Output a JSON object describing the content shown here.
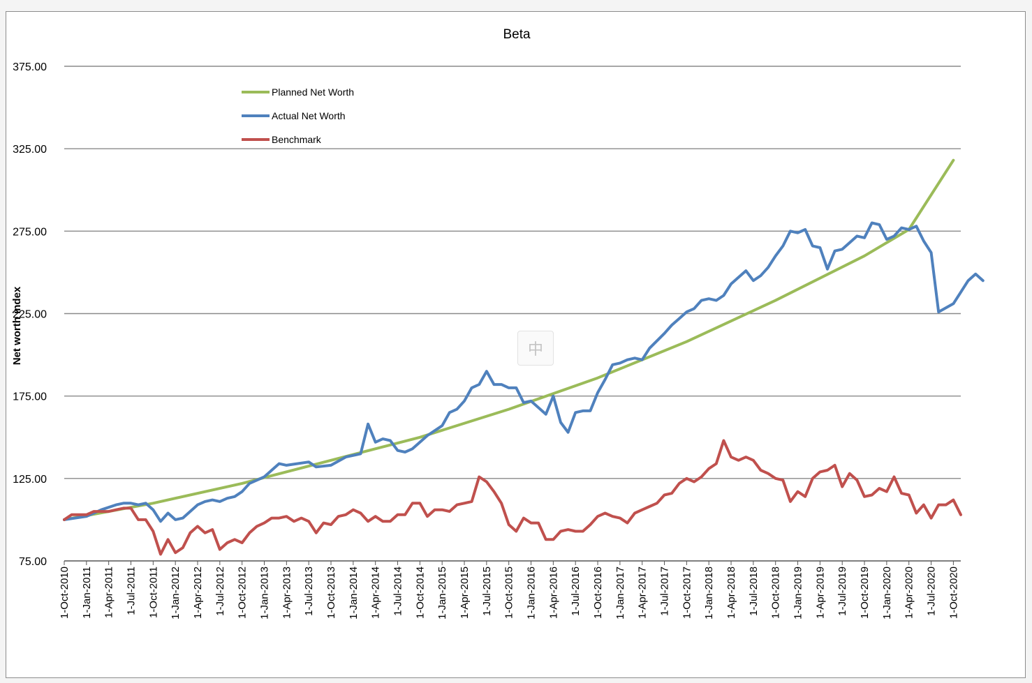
{
  "chart_data": {
    "type": "line",
    "title": "Beta",
    "ylabel": "Net worth index",
    "xlabel": "",
    "ylim": [
      75,
      375
    ],
    "yticks": [
      "75.00",
      "125.00",
      "175.00",
      "225.00",
      "275.00",
      "325.00",
      "375.00"
    ],
    "x_start": "2010-10-01",
    "months": 121,
    "x_tick_labels": [
      "1-Oct-2010",
      "1-Jan-2011",
      "1-Apr-2011",
      "1-Jul-2011",
      "1-Oct-2011",
      "1-Jan-2012",
      "1-Apr-2012",
      "1-Jul-2012",
      "1-Oct-2012",
      "1-Jan-2013",
      "1-Apr-2013",
      "1-Jul-2013",
      "1-Oct-2013",
      "1-Jan-2014",
      "1-Apr-2014",
      "1-Jul-2014",
      "1-Oct-2014",
      "1-Jan-2015",
      "1-Apr-2015",
      "1-Jul-2015",
      "1-Oct-2015",
      "1-Jan-2016",
      "1-Apr-2016",
      "1-Jul-2016",
      "1-Oct-2016",
      "1-Jan-2017",
      "1-Apr-2017",
      "1-Jul-2017",
      "1-Oct-2017",
      "1-Jan-2018",
      "1-Apr-2018",
      "1-Jul-2018",
      "1-Oct-2018",
      "1-Jan-2019",
      "1-Apr-2019",
      "1-Jul-2019",
      "1-Oct-2019",
      "1-Jan-2020",
      "1-Apr-2020",
      "1-Jul-2020",
      "1-Oct-2020"
    ],
    "grid": true,
    "legend_position": "top-left",
    "series": [
      {
        "name": "Planned Net Worth",
        "color": "#9bbb59",
        "anchors": [
          [
            0,
            100
          ],
          [
            12,
            110
          ],
          [
            24,
            122
          ],
          [
            36,
            136
          ],
          [
            48,
            150
          ],
          [
            60,
            167
          ],
          [
            72,
            186
          ],
          [
            84,
            208
          ],
          [
            96,
            233
          ],
          [
            108,
            260
          ],
          [
            114,
            276
          ],
          [
            120,
            318
          ]
        ]
      },
      {
        "name": "Actual Net Worth",
        "color": "#4f81bd",
        "anchors": [
          [
            0,
            100
          ],
          [
            3,
            102
          ],
          [
            5,
            106
          ],
          [
            7,
            109
          ],
          [
            8,
            110
          ],
          [
            9,
            110
          ],
          [
            10,
            109
          ],
          [
            11,
            110
          ],
          [
            12,
            106
          ],
          [
            13,
            99
          ],
          [
            14,
            104
          ],
          [
            15,
            100
          ],
          [
            16,
            101
          ],
          [
            18,
            109
          ],
          [
            19,
            111
          ],
          [
            20,
            112
          ],
          [
            21,
            111
          ],
          [
            22,
            113
          ],
          [
            23,
            114
          ],
          [
            24,
            117
          ],
          [
            25,
            122
          ],
          [
            27,
            126
          ],
          [
            28,
            130
          ],
          [
            29,
            134
          ],
          [
            30,
            133
          ],
          [
            33,
            135
          ],
          [
            34,
            132
          ],
          [
            36,
            133
          ],
          [
            38,
            138
          ],
          [
            40,
            140
          ],
          [
            41,
            158
          ],
          [
            42,
            147
          ],
          [
            43,
            149
          ],
          [
            44,
            148
          ],
          [
            45,
            142
          ],
          [
            46,
            141
          ],
          [
            47,
            143
          ],
          [
            49,
            151
          ],
          [
            51,
            157
          ],
          [
            52,
            165
          ],
          [
            53,
            167
          ],
          [
            54,
            172
          ],
          [
            55,
            180
          ],
          [
            56,
            182
          ],
          [
            57,
            190
          ],
          [
            58,
            182
          ],
          [
            59,
            182
          ],
          [
            60,
            180
          ],
          [
            61,
            180
          ],
          [
            62,
            171
          ],
          [
            63,
            172
          ],
          [
            65,
            164
          ],
          [
            66,
            175
          ],
          [
            67,
            159
          ],
          [
            68,
            153
          ],
          [
            69,
            165
          ],
          [
            70,
            166
          ],
          [
            71,
            166
          ],
          [
            72,
            177
          ],
          [
            73,
            185
          ],
          [
            74,
            194
          ],
          [
            75,
            195
          ],
          [
            76,
            197
          ],
          [
            77,
            198
          ],
          [
            78,
            197
          ],
          [
            79,
            204
          ],
          [
            81,
            213
          ],
          [
            82,
            218
          ],
          [
            83,
            222
          ],
          [
            84,
            226
          ],
          [
            85,
            228
          ],
          [
            86,
            233
          ],
          [
            87,
            234
          ],
          [
            88,
            233
          ],
          [
            89,
            236
          ],
          [
            90,
            243
          ],
          [
            91,
            247
          ],
          [
            92,
            251
          ],
          [
            93,
            245
          ],
          [
            94,
            248
          ],
          [
            95,
            253
          ],
          [
            96,
            260
          ],
          [
            97,
            266
          ],
          [
            98,
            275
          ],
          [
            99,
            274
          ],
          [
            100,
            276
          ],
          [
            101,
            266
          ],
          [
            102,
            265
          ],
          [
            103,
            252
          ],
          [
            104,
            263
          ],
          [
            105,
            264
          ],
          [
            106,
            268
          ],
          [
            107,
            272
          ],
          [
            108,
            271
          ],
          [
            109,
            280
          ],
          [
            110,
            279
          ],
          [
            111,
            270
          ],
          [
            112,
            272
          ],
          [
            113,
            277
          ],
          [
            114,
            276
          ],
          [
            115,
            278
          ],
          [
            116,
            269
          ],
          [
            117,
            262
          ],
          [
            118,
            226
          ],
          [
            120,
            231
          ],
          [
            121,
            238
          ],
          [
            122,
            245
          ],
          [
            123,
            249
          ],
          [
            124,
            245
          ]
        ]
      },
      {
        "name": "Benchmark",
        "color": "#c0504d",
        "anchors": [
          [
            0,
            100
          ],
          [
            1,
            103
          ],
          [
            3,
            103
          ],
          [
            4,
            105
          ],
          [
            6,
            105
          ],
          [
            7,
            106
          ],
          [
            8,
            107
          ],
          [
            9,
            107
          ],
          [
            10,
            100
          ],
          [
            11,
            100
          ],
          [
            12,
            93
          ],
          [
            13,
            79
          ],
          [
            14,
            88
          ],
          [
            15,
            80
          ],
          [
            16,
            83
          ],
          [
            17,
            92
          ],
          [
            18,
            96
          ],
          [
            19,
            92
          ],
          [
            20,
            94
          ],
          [
            21,
            82
          ],
          [
            22,
            86
          ],
          [
            23,
            88
          ],
          [
            24,
            86
          ],
          [
            25,
            92
          ],
          [
            26,
            96
          ],
          [
            27,
            98
          ],
          [
            28,
            101
          ],
          [
            29,
            101
          ],
          [
            30,
            102
          ],
          [
            31,
            99
          ],
          [
            32,
            101
          ],
          [
            33,
            99
          ],
          [
            34,
            92
          ],
          [
            35,
            98
          ],
          [
            36,
            97
          ],
          [
            37,
            102
          ],
          [
            38,
            103
          ],
          [
            39,
            106
          ],
          [
            40,
            104
          ],
          [
            41,
            99
          ],
          [
            42,
            102
          ],
          [
            43,
            99
          ],
          [
            44,
            99
          ],
          [
            45,
            103
          ],
          [
            46,
            103
          ],
          [
            47,
            110
          ],
          [
            48,
            110
          ],
          [
            49,
            102
          ],
          [
            50,
            106
          ],
          [
            51,
            106
          ],
          [
            52,
            105
          ],
          [
            53,
            109
          ],
          [
            54,
            110
          ],
          [
            55,
            111
          ],
          [
            56,
            126
          ],
          [
            57,
            123
          ],
          [
            58,
            117
          ],
          [
            59,
            110
          ],
          [
            60,
            97
          ],
          [
            61,
            93
          ],
          [
            62,
            101
          ],
          [
            63,
            98
          ],
          [
            64,
            98
          ],
          [
            65,
            88
          ],
          [
            66,
            88
          ],
          [
            67,
            93
          ],
          [
            68,
            94
          ],
          [
            69,
            93
          ],
          [
            70,
            93
          ],
          [
            71,
            97
          ],
          [
            72,
            102
          ],
          [
            73,
            104
          ],
          [
            74,
            102
          ],
          [
            75,
            101
          ],
          [
            76,
            98
          ],
          [
            77,
            104
          ],
          [
            78,
            106
          ],
          [
            79,
            108
          ],
          [
            80,
            110
          ],
          [
            81,
            115
          ],
          [
            82,
            116
          ],
          [
            83,
            122
          ],
          [
            84,
            125
          ],
          [
            85,
            123
          ],
          [
            86,
            126
          ],
          [
            87,
            131
          ],
          [
            88,
            134
          ],
          [
            89,
            148
          ],
          [
            90,
            138
          ],
          [
            91,
            136
          ],
          [
            92,
            138
          ],
          [
            93,
            136
          ],
          [
            94,
            130
          ],
          [
            95,
            128
          ],
          [
            96,
            125
          ],
          [
            97,
            124
          ],
          [
            98,
            111
          ],
          [
            99,
            117
          ],
          [
            100,
            114
          ],
          [
            101,
            125
          ],
          [
            102,
            129
          ],
          [
            103,
            130
          ],
          [
            104,
            133
          ],
          [
            105,
            120
          ],
          [
            106,
            128
          ],
          [
            107,
            124
          ],
          [
            108,
            114
          ],
          [
            109,
            115
          ],
          [
            110,
            119
          ],
          [
            111,
            117
          ],
          [
            112,
            126
          ],
          [
            113,
            116
          ],
          [
            114,
            115
          ],
          [
            115,
            104
          ],
          [
            116,
            109
          ],
          [
            117,
            101
          ],
          [
            118,
            109
          ],
          [
            119,
            109
          ],
          [
            120,
            112
          ],
          [
            121,
            103
          ]
        ]
      }
    ]
  }
}
